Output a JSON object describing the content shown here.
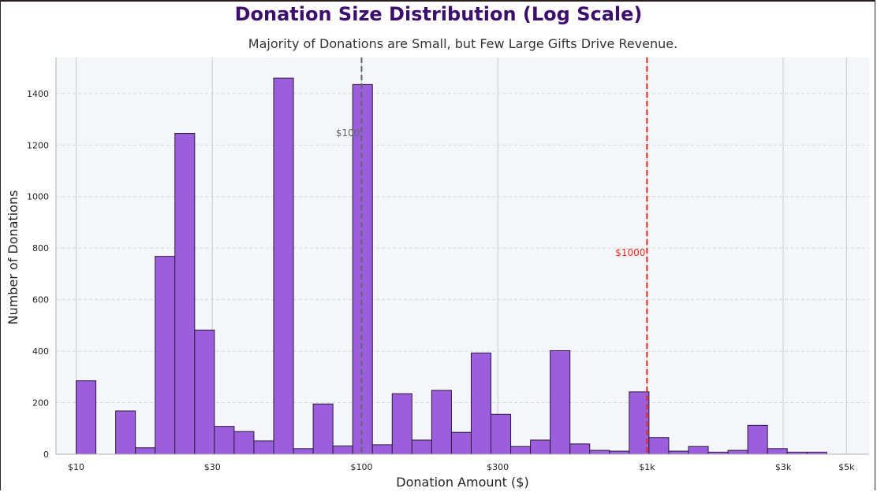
{
  "title": "Donation Size Distribution (Log Scale)",
  "subtitle": "Majority of Donations are Small, but Few Large Gifts Drive Revenue.",
  "colors": {
    "bar_fill": "#9b5fdd",
    "bar_edge": "#2b1a3a",
    "title": "#3b0f6b",
    "plot_bg": "#f5f6f9",
    "ref_100": "#666666",
    "ref_1000": "#e8281e"
  },
  "chart_data": {
    "type": "bar",
    "title": "Donation Size Distribution (Log Scale)",
    "subtitle": "Majority of Donations are Small, but Few Large Gifts Drive Revenue.",
    "xlabel": "Donation Amount ($)",
    "ylabel": "Number of Donations",
    "x_scale": "log",
    "xlim": [
      8.5,
      6000
    ],
    "ylim": [
      0,
      1540
    ],
    "grid": true,
    "x_ticks": [
      {
        "value": 10,
        "label": "$10"
      },
      {
        "value": 30,
        "label": "$30"
      },
      {
        "value": 100,
        "label": "$100"
      },
      {
        "value": 300,
        "label": "$300"
      },
      {
        "value": 1000,
        "label": "$1k"
      },
      {
        "value": 3000,
        "label": "$3k"
      },
      {
        "value": 5000,
        "label": "$5k"
      }
    ],
    "y_ticks": [
      0,
      200,
      400,
      600,
      800,
      1000,
      1200,
      1400
    ],
    "bins": {
      "log_start": 10,
      "log_end": 5000,
      "count": 39
    },
    "values": [
      285,
      0,
      168,
      25,
      768,
      1245,
      482,
      108,
      88,
      52,
      1460,
      22,
      195,
      32,
      1435,
      37,
      235,
      55,
      248,
      85,
      393,
      155,
      30,
      55,
      402,
      40,
      15,
      12,
      242,
      65,
      12,
      30,
      8,
      15,
      112,
      22,
      8,
      8,
      0
    ],
    "reference_lines": [
      {
        "x": 100,
        "label": "$100",
        "style": "dashed",
        "color": "#666666"
      },
      {
        "x": 1000,
        "label": "$1000",
        "style": "dashed",
        "color": "#e8281e"
      }
    ]
  }
}
